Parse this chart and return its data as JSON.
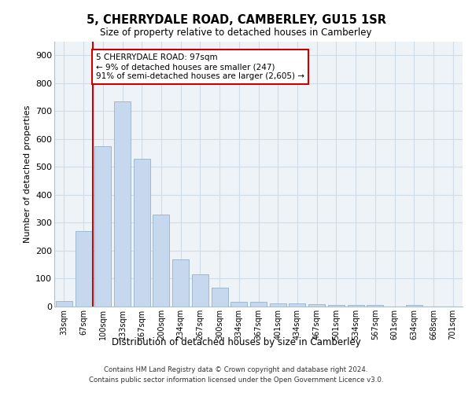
{
  "title": "5, CHERRYDALE ROAD, CAMBERLEY, GU15 1SR",
  "subtitle": "Size of property relative to detached houses in Camberley",
  "xlabel": "Distribution of detached houses by size in Camberley",
  "ylabel": "Number of detached properties",
  "categories": [
    "33sqm",
    "67sqm",
    "100sqm",
    "133sqm",
    "167sqm",
    "200sqm",
    "234sqm",
    "267sqm",
    "300sqm",
    "334sqm",
    "367sqm",
    "401sqm",
    "434sqm",
    "467sqm",
    "501sqm",
    "534sqm",
    "567sqm",
    "601sqm",
    "634sqm",
    "668sqm",
    "701sqm"
  ],
  "values": [
    20,
    270,
    575,
    735,
    530,
    330,
    170,
    115,
    68,
    18,
    17,
    10,
    10,
    8,
    6,
    6,
    5,
    0,
    5,
    0,
    0
  ],
  "bar_color": "#c5d8ed",
  "bar_edge_color": "#a0b8d0",
  "vline_x": 1.5,
  "annotation_text": "5 CHERRYDALE ROAD: 97sqm\n← 9% of detached houses are smaller (247)\n91% of semi-detached houses are larger (2,605) →",
  "annotation_box_color": "#ffffff",
  "annotation_box_edge": "#cc0000",
  "vline_color": "#cc0000",
  "grid_color": "#d0dce8",
  "background_color": "#eef3f8",
  "footer_text": "Contains HM Land Registry data © Crown copyright and database right 2024.\nContains public sector information licensed under the Open Government Licence v3.0.",
  "ylim": [
    0,
    950
  ],
  "yticks": [
    0,
    100,
    200,
    300,
    400,
    500,
    600,
    700,
    800,
    900
  ]
}
